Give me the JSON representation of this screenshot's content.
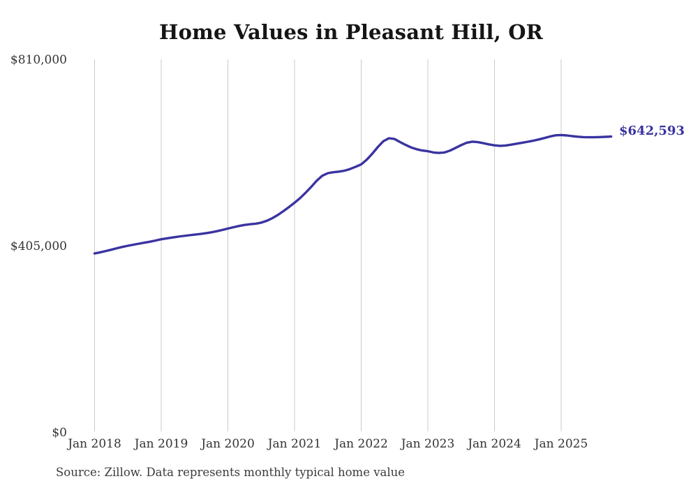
{
  "chart_data": {
    "type": "line",
    "title": "Home Values in Pleasant Hill, OR",
    "end_label": "$642,593",
    "end_value": 642593,
    "source_note": "Source: Zillow. Data represents monthly typical home value",
    "grid": "vertical-only",
    "legend": "none",
    "gridline_color": "#cbcbcb",
    "line_color": "#3a33a0",
    "ylim": [
      0,
      810000
    ],
    "y_ticks": [
      {
        "label": "$810,000",
        "value": 810000
      },
      {
        "label": "$405,000",
        "value": 405000
      },
      {
        "label": "$0",
        "value": 0
      }
    ],
    "x_ticks": [
      "Jan 2018",
      "Jan 2019",
      "Jan 2020",
      "Jan 2021",
      "Jan 2022",
      "Jan 2023",
      "Jan 2024",
      "Jan 2025"
    ],
    "series": [
      {
        "name": "Typical home value (monthly)",
        "color": "#3a33a0",
        "start_month": "2018-01",
        "end_month": "2025-10",
        "frequency": "monthly",
        "values": [
          389000,
          391500,
          394200,
          397200,
          400300,
          403200,
          405800,
          408100,
          410300,
          412400,
          414600,
          417100,
          419800,
          421800,
          423600,
          425400,
          427000,
          428400,
          429800,
          431200,
          432900,
          434900,
          437300,
          440000,
          443000,
          445900,
          448600,
          450900,
          452400,
          453600,
          455800,
          459800,
          465500,
          472500,
          480800,
          489600,
          499000,
          509200,
          520800,
          533400,
          546800,
          557600,
          563200,
          565200,
          566600,
          568500,
          572100,
          577000,
          582300,
          592500,
          605500,
          620000,
          632500,
          638900,
          637200,
          630600,
          624400,
          619000,
          615000,
          612200,
          610800,
          608000,
          606900,
          608100,
          612100,
          618000,
          624100,
          629300,
          631500,
          630400,
          628100,
          625600,
          623400,
          622400,
          623100,
          625000,
          627100,
          629300,
          631300,
          633600,
          636300,
          639300,
          642700,
          645300,
          645900,
          644900,
          643500,
          642300,
          641400,
          641000,
          641100,
          641500,
          642000,
          642593
        ]
      }
    ]
  }
}
